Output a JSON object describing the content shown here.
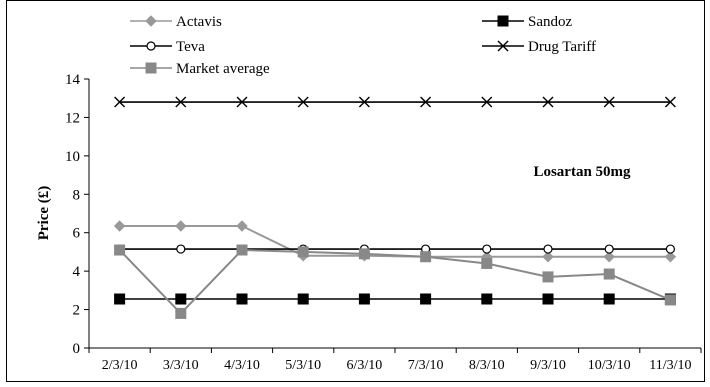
{
  "chart_data": {
    "type": "line",
    "title": "Losartan 50mg",
    "xlabel": "",
    "ylabel": "Price (£)",
    "ylim": [
      0,
      14
    ],
    "yticks": [
      0,
      2,
      4,
      6,
      8,
      10,
      12,
      14
    ],
    "categories": [
      "2/3/10",
      "3/3/10",
      "4/3/10",
      "5/3/10",
      "6/3/10",
      "7/3/10",
      "8/3/10",
      "9/3/10",
      "10/3/10",
      "11/3/10"
    ],
    "grid": false,
    "legend_position": "top",
    "series": [
      {
        "name": "Actavis",
        "marker": "diamond",
        "color": "#999999",
        "values": [
          6.35,
          6.35,
          6.35,
          4.8,
          4.8,
          4.75,
          4.75,
          4.75,
          4.75,
          4.75
        ]
      },
      {
        "name": "Sandoz",
        "marker": "square-filled",
        "color": "#000000",
        "values": [
          2.55,
          2.55,
          2.55,
          2.55,
          2.55,
          2.55,
          2.55,
          2.55,
          2.55,
          2.55
        ]
      },
      {
        "name": "Teva",
        "marker": "circle-open",
        "color": "#000000",
        "values": [
          5.15,
          5.15,
          5.15,
          5.15,
          5.15,
          5.15,
          5.15,
          5.15,
          5.15,
          5.15
        ]
      },
      {
        "name": "Drug Tariff",
        "marker": "x",
        "color": "#000000",
        "values": [
          12.8,
          12.8,
          12.8,
          12.8,
          12.8,
          12.8,
          12.8,
          12.8,
          12.8,
          12.8
        ]
      },
      {
        "name": "Market average",
        "marker": "square",
        "color": "#888888",
        "values": [
          5.1,
          1.8,
          5.1,
          5.0,
          4.9,
          4.75,
          4.4,
          3.7,
          3.85,
          2.5
        ]
      }
    ]
  }
}
